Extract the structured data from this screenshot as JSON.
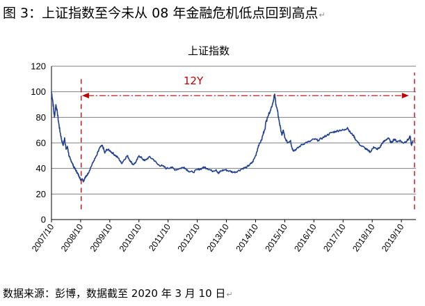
{
  "figure": {
    "title": "图 3：上证指数至今未从 08 年金融危机低点回到高点",
    "source": "数据来源：彭博，数据截至 2020 年 3 月 10 日",
    "para_mark": "↵"
  },
  "chart_data": {
    "type": "line",
    "title": "上证指数",
    "xlabel": "",
    "ylabel": "",
    "ylim": [
      0,
      120
    ],
    "xlim": [
      2007.75,
      2020.25
    ],
    "y_ticks": [
      "0",
      "20",
      "40",
      "60",
      "80",
      "100",
      "120"
    ],
    "x_ticks": [
      {
        "label": "2007/10",
        "x": 2007.75
      },
      {
        "label": "2008/10",
        "x": 2008.75
      },
      {
        "label": "2009/10",
        "x": 2009.75
      },
      {
        "label": "2010/10",
        "x": 2010.75
      },
      {
        "label": "2011/10",
        "x": 2011.75
      },
      {
        "label": "2012/10",
        "x": 2012.75
      },
      {
        "label": "2013/10",
        "x": 2013.75
      },
      {
        "label": "2014/10",
        "x": 2014.75
      },
      {
        "label": "2015/10",
        "x": 2015.75
      },
      {
        "label": "2016/10",
        "x": 2016.75
      },
      {
        "label": "2017/10",
        "x": 2017.75
      },
      {
        "label": "2018/10",
        "x": 2018.75
      },
      {
        "label": "2019/10",
        "x": 2019.75
      }
    ],
    "grid": "horizontal",
    "line_color": "#1f3f8f",
    "series": [
      {
        "name": "上证指数",
        "x": [
          2007.75,
          2007.8,
          2007.85,
          2007.9,
          2007.95,
          2008.0,
          2008.05,
          2008.1,
          2008.15,
          2008.2,
          2008.25,
          2008.3,
          2008.35,
          2008.4,
          2008.45,
          2008.5,
          2008.55,
          2008.6,
          2008.65,
          2008.7,
          2008.75,
          2008.8,
          2008.85,
          2008.9,
          2008.95,
          2009.0,
          2009.1,
          2009.2,
          2009.3,
          2009.4,
          2009.5,
          2009.58,
          2009.65,
          2009.75,
          2009.85,
          2009.95,
          2010.05,
          2010.15,
          2010.25,
          2010.35,
          2010.45,
          2010.55,
          2010.65,
          2010.75,
          2010.85,
          2010.95,
          2011.1,
          2011.25,
          2011.4,
          2011.55,
          2011.7,
          2011.85,
          2012.0,
          2012.15,
          2012.3,
          2012.45,
          2012.6,
          2012.75,
          2012.9,
          2013.0,
          2013.1,
          2013.25,
          2013.4,
          2013.48,
          2013.55,
          2013.7,
          2013.85,
          2014.0,
          2014.15,
          2014.3,
          2014.45,
          2014.55,
          2014.65,
          2014.75,
          2014.85,
          2014.95,
          2015.05,
          2015.15,
          2015.25,
          2015.35,
          2015.4,
          2015.45,
          2015.5,
          2015.55,
          2015.6,
          2015.65,
          2015.7,
          2015.75,
          2015.85,
          2015.95,
          2016.0,
          2016.05,
          2016.15,
          2016.3,
          2016.45,
          2016.6,
          2016.75,
          2016.9,
          2017.05,
          2017.2,
          2017.35,
          2017.5,
          2017.65,
          2017.8,
          2017.9,
          2018.0,
          2018.1,
          2018.2,
          2018.35,
          2018.5,
          2018.6,
          2018.7,
          2018.8,
          2018.9,
          2019.0,
          2019.1,
          2019.2,
          2019.3,
          2019.4,
          2019.5,
          2019.6,
          2019.7,
          2019.8,
          2019.9,
          2020.0,
          2020.05,
          2020.1,
          2020.15
        ],
        "values": [
          100,
          92,
          80,
          90,
          84,
          75,
          68,
          62,
          58,
          64,
          55,
          57,
          50,
          47,
          45,
          42,
          40,
          38,
          36,
          34,
          31,
          32,
          30,
          33,
          34,
          36,
          41,
          46,
          50,
          56,
          58,
          52,
          55,
          54,
          52,
          50,
          48,
          44,
          47,
          50,
          46,
          43,
          45,
          50,
          48,
          46,
          49,
          47,
          43,
          42,
          40,
          41,
          39,
          40,
          41,
          38,
          37,
          39,
          40,
          41,
          40,
          38,
          39,
          36,
          38,
          39,
          38,
          37,
          38,
          40,
          41,
          43,
          45,
          50,
          58,
          62,
          70,
          80,
          85,
          92,
          98,
          90,
          85,
          78,
          72,
          66,
          70,
          64,
          60,
          62,
          56,
          54,
          55,
          58,
          60,
          61,
          63,
          62,
          64,
          66,
          68,
          69,
          70,
          70,
          72,
          68,
          66,
          62,
          58,
          56,
          54,
          53,
          57,
          55,
          56,
          60,
          62,
          64,
          60,
          63,
          61,
          62,
          60,
          61,
          63,
          65,
          58,
          62
        ]
      }
    ],
    "annotations": [
      {
        "text": "12Y",
        "type": "arrow",
        "x_start": 2008.75,
        "x_end": 2020.15,
        "y": 97,
        "color": "#c00000"
      },
      {
        "type": "vline",
        "x": 2008.77,
        "y_from": 8,
        "y_to": 112,
        "color": "#c00000"
      },
      {
        "type": "vline",
        "x": 2020.2,
        "y_from": 8,
        "y_to": 115,
        "color": "#c00000"
      }
    ]
  }
}
